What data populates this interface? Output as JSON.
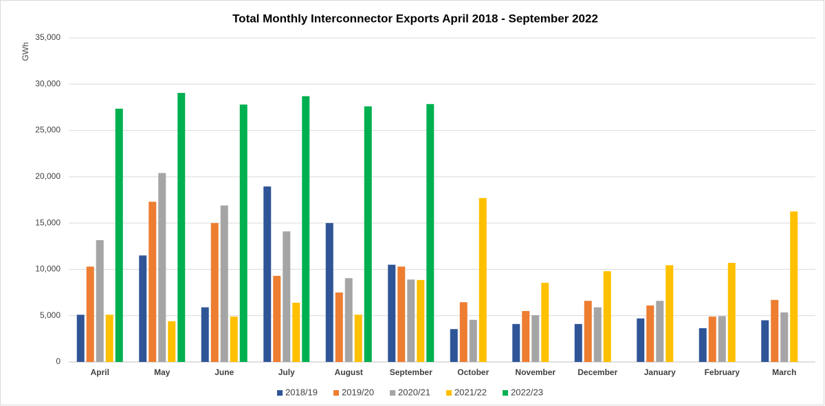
{
  "chart_data": {
    "type": "bar",
    "title": "Total Monthly Interconnector Exports April 2018 - September 2022",
    "y_label": "GWh",
    "categories": [
      "April",
      "May",
      "June",
      "July",
      "August",
      "September",
      "October",
      "November",
      "December",
      "January",
      "February",
      "March"
    ],
    "series": [
      {
        "name": "2018/19",
        "color": "#2f5597",
        "values": [
          5100,
          11500,
          5900,
          18950,
          15000,
          10500,
          3550,
          4100,
          4100,
          4700,
          3650,
          4500
        ]
      },
      {
        "name": "2019/20",
        "color": "#ed7d31",
        "values": [
          10300,
          17300,
          15000,
          9300,
          7500,
          10300,
          6450,
          5500,
          6600,
          6100,
          4900,
          6700
        ]
      },
      {
        "name": "2020/21",
        "color": "#a5a5a5",
        "values": [
          13150,
          20400,
          16900,
          14100,
          9050,
          8900,
          4550,
          5050,
          5900,
          6600,
          4950,
          5350
        ]
      },
      {
        "name": "2021/22",
        "color": "#ffc000",
        "values": [
          5100,
          4400,
          4900,
          6400,
          5100,
          8850,
          17700,
          8550,
          9800,
          10450,
          10700,
          16250
        ]
      },
      {
        "name": "2022/23",
        "color": "#00b050",
        "values": [
          27350,
          29050,
          27800,
          28700,
          27600,
          27850,
          null,
          null,
          null,
          null,
          null,
          null
        ]
      }
    ],
    "ylim": [
      0,
      35000
    ],
    "yticks": [
      0,
      {
        "value": 5000,
        "label": "5,000"
      },
      {
        "value": 10000,
        "label": "10,000"
      },
      {
        "value": 15000,
        "label": "15,000"
      },
      {
        "value": 20000,
        "label": "20,000"
      },
      {
        "value": 25000,
        "label": "25,000"
      },
      {
        "value": 30000,
        "label": "30,000"
      },
      {
        "value": 35000,
        "label": "35,000"
      }
    ],
    "grid": true,
    "legend": "bottom"
  }
}
